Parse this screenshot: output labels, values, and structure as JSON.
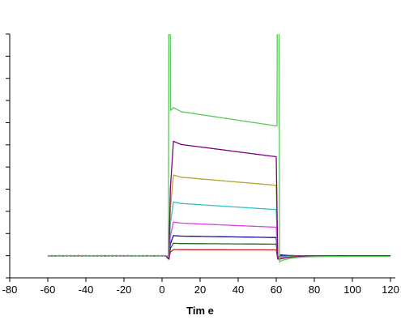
{
  "chart_data": {
    "type": "line",
    "xlabel": "Tim e",
    "ylabel": "",
    "title": "",
    "xlim": [
      -80,
      120
    ],
    "ylim": [
      -10,
      100
    ],
    "x_ticks": [
      -80,
      -60,
      -40,
      -20,
      0,
      20,
      40,
      60,
      80,
      100,
      120
    ],
    "y_tick_count": 12,
    "grid": false,
    "legend": "none",
    "baseline": 0,
    "injection_start": 3,
    "injection_end": 60,
    "series": [
      {
        "color": "#5ac85a",
        "start": 66,
        "end": 59,
        "dissoc_offset": -2.5
      },
      {
        "color": "#800080",
        "start": 51,
        "end": 45,
        "dissoc_offset": -1.5
      },
      {
        "color": "#bca033",
        "start": 36,
        "end": 32,
        "dissoc_offset": -1.0
      },
      {
        "color": "#33c0c0",
        "start": 24,
        "end": 21,
        "dissoc_offset": -0.6
      },
      {
        "color": "#e040e0",
        "start": 15,
        "end": 13,
        "dissoc_offset": -0.3
      },
      {
        "color": "#1010a0",
        "start": 9.0,
        "end": 8.3,
        "dissoc_offset": 0.4
      },
      {
        "color": "#1a6b1a",
        "start": 5.6,
        "end": 5.3,
        "dissoc_offset": 0.2
      },
      {
        "color": "#d02020",
        "start": 2.8,
        "end": 2.7,
        "dissoc_offset": 0.1
      }
    ]
  }
}
